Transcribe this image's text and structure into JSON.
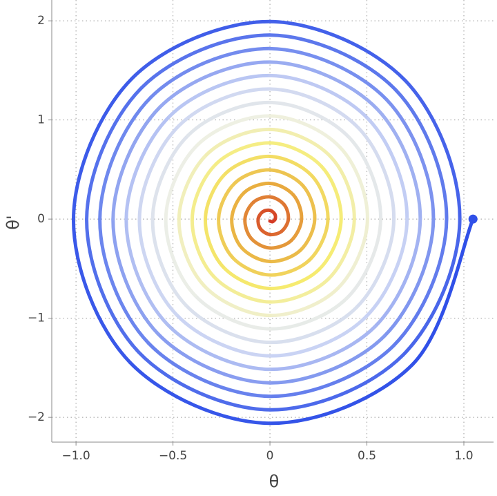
{
  "chart_data": {
    "type": "line",
    "x_label": "θ",
    "y_label": "θ'",
    "xlim": [
      -1.125,
      1.153
    ],
    "ylim": [
      -2.25,
      2.21
    ],
    "xticks": [
      {
        "value": -1,
        "label": "−1.0"
      },
      {
        "value": -0.5,
        "label": "−0.5"
      },
      0,
      0.5,
      {
        "value": 1,
        "label": "1.0"
      }
    ],
    "yticks": [
      {
        "value": -2,
        "label": "−2"
      },
      {
        "value": -1,
        "label": "−1"
      },
      0,
      1,
      2
    ],
    "grid": true,
    "x": [
      1.047,
      0.734,
      0,
      -0.722,
      -1.013,
      -0.71,
      0,
      0.698,
      0.979,
      0.686,
      0,
      -0.674,
      -0.945,
      -0.662,
      0,
      0.65,
      0.911,
      0.638,
      0,
      -0.626,
      -0.877,
      -0.614,
      0,
      0.602,
      0.843,
      0.59,
      0,
      -0.578,
      -0.809,
      -0.566,
      0,
      0.554,
      0.775,
      0.542,
      0,
      -0.53,
      -0.741,
      -0.518,
      0,
      0.506,
      0.707,
      0.494,
      0,
      -0.482,
      -0.673,
      -0.47,
      0,
      0.458,
      0.639,
      0.446,
      0,
      -0.434,
      -0.605,
      -0.422,
      0,
      0.41,
      0.571,
      0.398,
      0,
      -0.386,
      -0.537,
      -0.374,
      0,
      0.362,
      0.503,
      0.35,
      0,
      -0.338,
      -0.469,
      -0.326,
      0,
      0.314,
      0.435,
      0.302,
      0,
      -0.29,
      -0.401,
      -0.278,
      0,
      0.266,
      0.367,
      0.254,
      0,
      -0.241,
      -0.333,
      -0.229,
      0,
      0.217,
      0.299,
      0.205,
      0,
      -0.193,
      -0.265,
      -0.181,
      0,
      0.169,
      0.231,
      0.157,
      0,
      -0.145,
      -0.197,
      -0.133,
      0,
      0.121,
      0.163,
      0.109,
      0,
      -0.097,
      -0.129,
      -0.085,
      0,
      0.073,
      0.095,
      0.061,
      0,
      -0.049,
      -0.061,
      -0.037,
      0,
      0.025,
      0.027,
      0.013,
      0
    ],
    "series": [
      {
        "values": [
          0,
          -1.469,
          -2.06,
          -1.445,
          0,
          1.421,
          1.992,
          1.397,
          0,
          -1.372,
          -1.924,
          -1.348,
          0,
          1.324,
          1.856,
          1.3,
          0,
          -1.276,
          -1.788,
          -1.252,
          0,
          1.228,
          1.72,
          1.204,
          0,
          -1.18,
          -1.652,
          -1.156,
          0,
          1.132,
          1.584,
          1.108,
          0,
          -1.084,
          -1.516,
          -1.06,
          0,
          1.036,
          1.448,
          1.012,
          0,
          -0.988,
          -1.38,
          -0.964,
          0,
          0.94,
          1.312,
          0.916,
          0,
          -0.892,
          -1.244,
          -0.868,
          0,
          0.844,
          1.176,
          0.82,
          0,
          -0.795,
          -1.108,
          -0.771,
          0,
          0.747,
          1.04,
          0.723,
          0,
          -0.699,
          -0.972,
          -0.675,
          0,
          0.651,
          0.904,
          0.627,
          0,
          -0.603,
          -0.836,
          -0.579,
          0,
          0.555,
          0.768,
          0.531,
          0,
          -0.507,
          -0.7,
          -0.483,
          0,
          0.459,
          0.632,
          0.435,
          0,
          -0.411,
          -0.564,
          -0.387,
          0,
          0.363,
          0.496,
          0.339,
          0,
          -0.315,
          -0.428,
          -0.291,
          0,
          0.267,
          0.36,
          0.243,
          0,
          -0.218,
          -0.292,
          -0.194,
          0,
          0.17,
          0.224,
          0.146,
          0,
          -0.122,
          -0.156,
          -0.098,
          0,
          0.074,
          0.088,
          0.05,
          0,
          -0.026,
          -0.02
        ],
        "colors": [
          "#3050e8",
          "#6f88ee",
          "#c8d2f4",
          "#eef0e6",
          "#f6ec70",
          "#e9b040",
          "#d33a25"
        ]
      }
    ]
  }
}
